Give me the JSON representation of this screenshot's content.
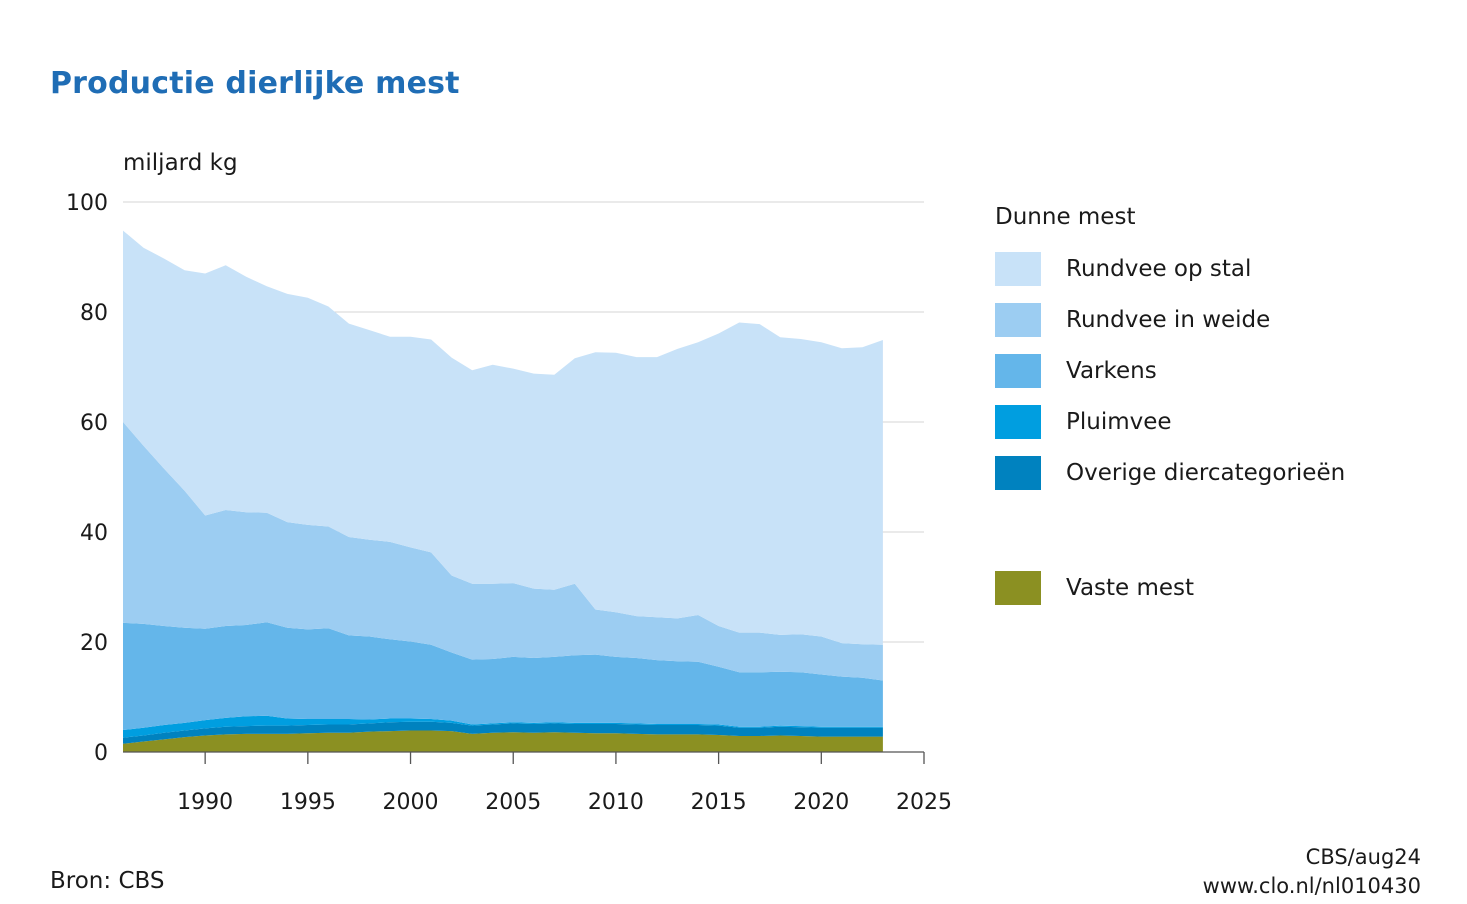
{
  "title": "Productie dierlijke mest",
  "unit_label": "miljard kg",
  "source": "Bron: CBS",
  "credit": {
    "line1": "CBS/aug24",
    "line2": "www.clo.nl/nl010430"
  },
  "legend": {
    "heading": "Dunne mest",
    "items": [
      {
        "label": "Rundvee op stal",
        "color": "#c8e2f8"
      },
      {
        "label": "Rundvee in weide",
        "color": "#9ccdf2"
      },
      {
        "label": "Varkens",
        "color": "#64b6ea"
      },
      {
        "label": "Pluimvee",
        "color": "#009ee0"
      },
      {
        "label": "Overige diercategorieën",
        "color": "#0082bf"
      }
    ],
    "extra": {
      "label": "Vaste mest",
      "color": "#8b9022"
    }
  },
  "chart_data": {
    "type": "area",
    "stacked": true,
    "x": [
      1986,
      1987,
      1988,
      1989,
      1990,
      1991,
      1992,
      1993,
      1994,
      1995,
      1996,
      1997,
      1998,
      1999,
      2000,
      2001,
      2002,
      2003,
      2004,
      2005,
      2006,
      2007,
      2008,
      2009,
      2010,
      2011,
      2012,
      2013,
      2014,
      2015,
      2016,
      2017,
      2018,
      2019,
      2020,
      2021,
      2022,
      2023
    ],
    "xlim": [
      1986,
      2025
    ],
    "ylim": [
      0,
      100
    ],
    "x_ticks": [
      1990,
      1995,
      2000,
      2005,
      2010,
      2015,
      2020,
      2025
    ],
    "y_ticks": [
      0,
      20,
      40,
      60,
      80,
      100
    ],
    "ylabel": "miljard kg",
    "grid": "horizontal",
    "legend_position": "right",
    "series": [
      {
        "name": "Vaste mest",
        "color": "#8b9022",
        "values": [
          1.5,
          1.9,
          2.3,
          2.7,
          3.0,
          3.2,
          3.3,
          3.3,
          3.3,
          3.4,
          3.5,
          3.5,
          3.7,
          3.8,
          3.9,
          3.9,
          3.8,
          3.3,
          3.5,
          3.6,
          3.5,
          3.6,
          3.5,
          3.4,
          3.4,
          3.3,
          3.2,
          3.2,
          3.2,
          3.1,
          2.9,
          2.9,
          3.0,
          2.9,
          2.8,
          2.8,
          2.8,
          2.8
        ]
      },
      {
        "name": "Overige diercategorieën",
        "color": "#0082bf",
        "values": [
          1.1,
          1.1,
          1.2,
          1.2,
          1.3,
          1.4,
          1.4,
          1.5,
          1.5,
          1.5,
          1.5,
          1.5,
          1.5,
          1.6,
          1.6,
          1.6,
          1.5,
          1.5,
          1.5,
          1.6,
          1.6,
          1.6,
          1.6,
          1.7,
          1.7,
          1.7,
          1.7,
          1.7,
          1.7,
          1.7,
          1.5,
          1.5,
          1.6,
          1.6,
          1.6,
          1.6,
          1.6,
          1.6
        ]
      },
      {
        "name": "Pluimvee",
        "color": "#009ee0",
        "values": [
          1.4,
          1.4,
          1.4,
          1.4,
          1.5,
          1.6,
          1.8,
          1.8,
          1.3,
          1.1,
          1.0,
          1.0,
          0.7,
          0.7,
          0.6,
          0.5,
          0.4,
          0.2,
          0.2,
          0.2,
          0.2,
          0.2,
          0.2,
          0.2,
          0.2,
          0.2,
          0.2,
          0.2,
          0.2,
          0.2,
          0.2,
          0.2,
          0.2,
          0.2,
          0.2,
          0.2,
          0.2,
          0.2
        ]
      },
      {
        "name": "Varkens",
        "color": "#64b6ea",
        "values": [
          19.5,
          18.9,
          18.0,
          17.3,
          16.6,
          16.7,
          16.6,
          17.0,
          16.5,
          16.3,
          16.5,
          15.2,
          15.1,
          14.4,
          14.0,
          13.5,
          12.4,
          11.8,
          11.7,
          11.9,
          11.8,
          11.9,
          12.3,
          12.4,
          12.0,
          11.9,
          11.6,
          11.4,
          11.3,
          10.5,
          9.9,
          9.9,
          9.8,
          9.8,
          9.5,
          9.1,
          8.9,
          8.4
        ]
      },
      {
        "name": "Rundvee in weide",
        "color": "#9ccdf2",
        "values": [
          36.5,
          32.4,
          28.6,
          24.9,
          20.6,
          21.1,
          20.5,
          19.9,
          19.2,
          19.0,
          18.5,
          17.9,
          17.6,
          17.7,
          17.1,
          16.8,
          14.0,
          13.8,
          13.7,
          13.4,
          12.6,
          12.2,
          13.0,
          8.2,
          8.1,
          7.6,
          7.8,
          7.8,
          8.5,
          7.4,
          7.2,
          7.2,
          6.7,
          6.9,
          6.9,
          6.1,
          6.1,
          6.5
        ]
      },
      {
        "name": "Rundvee op stal",
        "color": "#c8e2f8",
        "values": [
          34.8,
          36.0,
          38.2,
          40.1,
          44.0,
          44.5,
          42.8,
          41.2,
          41.5,
          41.3,
          40.0,
          38.8,
          38.1,
          37.3,
          38.3,
          38.7,
          39.6,
          38.8,
          39.8,
          39.0,
          39.1,
          39.1,
          41.0,
          46.8,
          47.2,
          47.1,
          47.3,
          49.0,
          49.6,
          53.2,
          56.4,
          56.1,
          54.1,
          53.7,
          53.5,
          53.6,
          54.0,
          55.4
        ]
      }
    ]
  }
}
